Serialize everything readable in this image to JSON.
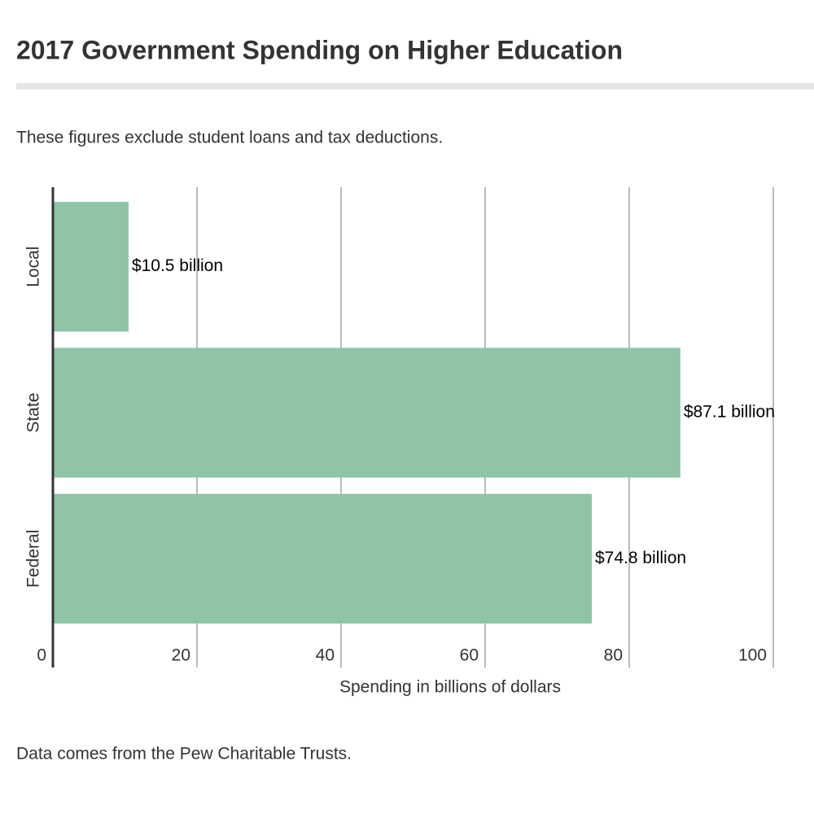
{
  "chart_data": {
    "type": "bar",
    "orientation": "horizontal",
    "title": "2017 Government Spending on Higher Education",
    "subtitle": "These figures exclude student loans and tax deductions.",
    "x_label": "Spending in billions of dollars",
    "source": "Data comes from the Pew Charitable Trusts.",
    "categories": [
      "Local",
      "State",
      "Federal"
    ],
    "values": [
      10.5,
      87.1,
      74.8
    ],
    "value_labels": [
      "$10.5 billion",
      "$87.1 billion",
      "$74.8 billion"
    ],
    "color": "#8fc4a7",
    "xlim": [
      0,
      100
    ],
    "xticks": [
      0,
      20,
      40,
      60,
      80,
      100
    ],
    "grid": true
  }
}
